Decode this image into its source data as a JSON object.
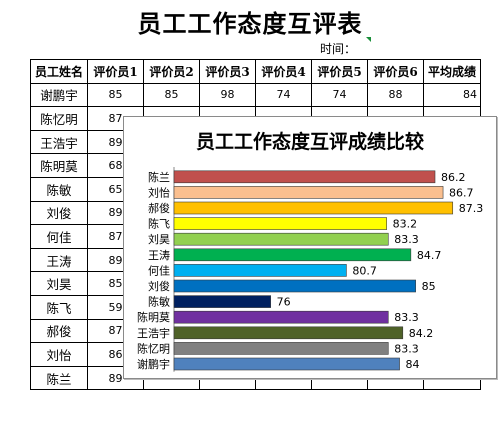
{
  "sheet": {
    "title": "员工工作态度互评表",
    "time_label": "时间：",
    "headers": [
      "员工姓名",
      "评价员1",
      "评价员2",
      "评价员3",
      "评价员4",
      "评价员5",
      "评价员6",
      "平均成绩"
    ],
    "rows": [
      [
        "谢鹏宇",
        "85",
        "85",
        "98",
        "74",
        "74",
        "88",
        "84"
      ],
      [
        "陈忆明",
        "87",
        "",
        "",
        "",
        "",
        "",
        ""
      ],
      [
        "王浩宇",
        "89",
        "",
        "",
        "",
        "",
        "",
        ""
      ],
      [
        "陈明莫",
        "68",
        "",
        "",
        "",
        "",
        "",
        ""
      ],
      [
        "陈敏",
        "65",
        "",
        "",
        "",
        "",
        "",
        ""
      ],
      [
        "刘俊",
        "89",
        "",
        "",
        "",
        "",
        "",
        ""
      ],
      [
        "何佳",
        "87",
        "",
        "",
        "",
        "",
        "",
        ""
      ],
      [
        "王涛",
        "89",
        "",
        "",
        "",
        "",
        "",
        ""
      ],
      [
        "刘昊",
        "85",
        "",
        "",
        "",
        "",
        "",
        ""
      ],
      [
        "陈飞",
        "59",
        "",
        "",
        "",
        "",
        "",
        ""
      ],
      [
        "郝俊",
        "87",
        "",
        "",
        "",
        "",
        "",
        ""
      ],
      [
        "刘怡",
        "86",
        "",
        "",
        "",
        "",
        "",
        ""
      ],
      [
        "陈兰",
        "89",
        "",
        "",
        "",
        "",
        "",
        ""
      ]
    ]
  },
  "chart_data": {
    "type": "bar",
    "orientation": "horizontal",
    "title": "员工工作态度互评成绩比较",
    "categories": [
      "陈兰",
      "刘怡",
      "郝俊",
      "陈飞",
      "刘昊",
      "王涛",
      "何佳",
      "刘俊",
      "陈敏",
      "陈明莫",
      "王浩宇",
      "陈忆明",
      "谢鹏宇"
    ],
    "values": [
      86.2,
      86.7,
      87.3,
      83.2,
      83.3,
      84.7,
      80.7,
      85,
      76,
      83.3,
      84.2,
      83.3,
      84
    ],
    "value_labels": [
      "86.2",
      "86.7",
      "87.3",
      "83.2",
      "83.3",
      "84.7",
      "80.7",
      "85",
      "76",
      "83.3",
      "84.2",
      "83.3",
      "84"
    ],
    "colors": [
      "#c0504d",
      "#fabf8f",
      "#ffc000",
      "#ffff00",
      "#92d050",
      "#00b050",
      "#00b0f0",
      "#0070c0",
      "#002060",
      "#7030a0",
      "#4f6228",
      "#808080",
      "#4f81bd"
    ],
    "xlim": [
      70,
      88
    ],
    "grid": false,
    "legend": "none"
  }
}
